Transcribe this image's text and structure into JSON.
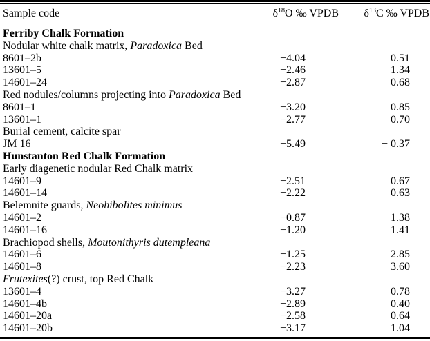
{
  "table": {
    "columns": [
      {
        "label": "Sample code"
      },
      {
        "symbol": "δ",
        "mass": "18",
        "rest": "O ‰ VPDB"
      },
      {
        "symbol": "δ",
        "mass": "13",
        "rest": "C ‰ VPDB"
      }
    ],
    "rows": [
      {
        "type": "section",
        "parts": [
          {
            "text": "Ferriby Chalk Formation",
            "italic": false
          }
        ]
      },
      {
        "type": "group",
        "parts": [
          {
            "text": "Nodular white chalk matrix, ",
            "italic": false
          },
          {
            "text": "Paradoxica",
            "italic": true
          },
          {
            "text": " Bed",
            "italic": false
          }
        ]
      },
      {
        "type": "data",
        "code": "8601–2b",
        "d18o": "−4.04",
        "d13c": "0.51"
      },
      {
        "type": "data",
        "code": "13601–5",
        "d18o": "−2.46",
        "d13c": "1.34"
      },
      {
        "type": "data",
        "code": "14601–24",
        "d18o": "−2.87",
        "d13c": "0.68"
      },
      {
        "type": "group",
        "parts": [
          {
            "text": "Red nodules/columns projecting into ",
            "italic": false
          },
          {
            "text": "Paradoxica",
            "italic": true
          },
          {
            "text": " Bed",
            "italic": false
          }
        ]
      },
      {
        "type": "data",
        "code": "8601–1",
        "d18o": "−3.20",
        "d13c": "0.85"
      },
      {
        "type": "data",
        "code": "13601–1",
        "d18o": "−2.77",
        "d13c": "0.70"
      },
      {
        "type": "group",
        "parts": [
          {
            "text": "Burial cement, calcite spar",
            "italic": false
          }
        ]
      },
      {
        "type": "data",
        "code": "JM 16",
        "d18o": "−5.49",
        "d13c": "− 0.37"
      },
      {
        "type": "section",
        "parts": [
          {
            "text": "Hunstanton Red Chalk Formation",
            "italic": false
          }
        ]
      },
      {
        "type": "group",
        "parts": [
          {
            "text": "Early diagenetic nodular Red Chalk matrix",
            "italic": false
          }
        ]
      },
      {
        "type": "data",
        "code": "14601–9",
        "d18o": "−2.51",
        "d13c": "0.67"
      },
      {
        "type": "data",
        "code": "14601–14",
        "d18o": "−2.22",
        "d13c": "0.63"
      },
      {
        "type": "group",
        "parts": [
          {
            "text": "Belemnite guards, ",
            "italic": false
          },
          {
            "text": "Neohibolites minimus",
            "italic": true
          }
        ]
      },
      {
        "type": "data",
        "code": "14601–2",
        "d18o": "−0.87",
        "d13c": "1.38"
      },
      {
        "type": "data",
        "code": "14601–16",
        "d18o": "−1.20",
        "d13c": "1.41"
      },
      {
        "type": "group",
        "parts": [
          {
            "text": "Brachiopod shells, ",
            "italic": false
          },
          {
            "text": "Moutonithyris dutempleana",
            "italic": true
          }
        ]
      },
      {
        "type": "data",
        "code": "14601–6",
        "d18o": "−1.25",
        "d13c": "2.85"
      },
      {
        "type": "data",
        "code": "14601–8",
        "d18o": "−2.23",
        "d13c": "3.60"
      },
      {
        "type": "group",
        "parts": [
          {
            "text": "Frutexites",
            "italic": true
          },
          {
            "text": "(?) crust, top Red Chalk",
            "italic": false
          }
        ]
      },
      {
        "type": "data",
        "code": "13601–4",
        "d18o": "−3.27",
        "d13c": "0.78"
      },
      {
        "type": "data",
        "code": "14601–4b",
        "d18o": "−2.89",
        "d13c": "0.40"
      },
      {
        "type": "data",
        "code": "14601–20a",
        "d18o": "−2.58",
        "d13c": "0.64"
      },
      {
        "type": "data",
        "code": "14601–20b",
        "d18o": "−3.17",
        "d13c": "1.04"
      }
    ]
  }
}
